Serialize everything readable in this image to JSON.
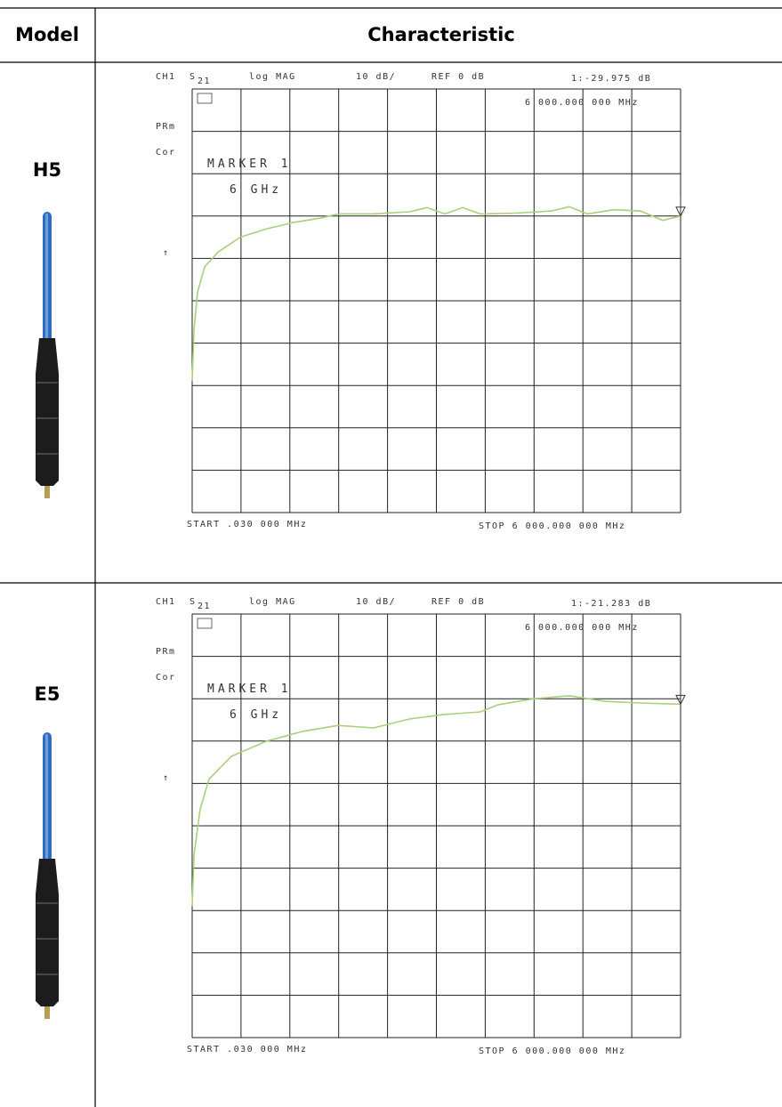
{
  "table": {
    "header": [
      "Model",
      "Characteristic"
    ],
    "rows": [
      {
        "model": "H5",
        "plot": {
          "channel": "CH1",
          "parameter": "S",
          "parameter_sub": "21",
          "format": "log MAG",
          "scale": "10 dB/",
          "reference": "REF 0 dB",
          "marker_readout": "1:-29.975 dB",
          "marker_frequency": "6 000.000 000 MHz",
          "labels": [
            "PRm",
            "Cor",
            "↑"
          ],
          "marker_label": "MARKER 1",
          "marker_value": "6 GHz",
          "start": "START .030 000 MHz",
          "stop": "STOP 6 000.000 000 MHz",
          "trace": {
            "xlim": [
              0.03,
              6000
            ],
            "ylim": [
              -100,
              0
            ],
            "x": [
              0.03,
              22,
              66,
              153,
              317,
              590,
              918,
              1246,
              1574,
              1792,
              2229,
              2667,
              2885,
              3104,
              3322,
              3541,
              3978,
              4415,
              4634,
              4852,
              5180,
              5508,
              5781,
              6000
            ],
            "values": [
              -69,
              -57,
              -48,
              -42,
              -38.5,
              -35,
              -33,
              -31.5,
              -30.5,
              -29.5,
              -29.5,
              -29,
              -28,
              -29.5,
              -28,
              -29.5,
              -29.3,
              -28.8,
              -27.8,
              -29.5,
              -28.5,
              -28.8,
              -31,
              -30
            ]
          }
        }
      },
      {
        "model": "E5",
        "plot": {
          "channel": "CH1",
          "parameter": "S",
          "parameter_sub": "21",
          "format": "log MAG",
          "scale": "10 dB/",
          "reference": "REF 0 dB",
          "marker_readout": "1:-21.283 dB",
          "marker_frequency": "6 000.000 000 MHz",
          "labels": [
            "PRm",
            "Cor",
            "↑"
          ],
          "marker_label": "MARKER 1",
          "marker_value": "6 GHz",
          "start": "START .030 000 MHz",
          "stop": "STOP 6 000.000 000 MHz",
          "trace": {
            "xlim": [
              0.03,
              6000
            ],
            "ylim": [
              -100,
              0
            ],
            "x": [
              0.03,
              22,
              98,
              208,
              481,
              918,
              1355,
              1792,
              2229,
              2667,
              3104,
              3541,
              3760,
              4197,
              4634,
              5071,
              5508,
              6000
            ],
            "values": [
              -69,
              -57,
              -46,
              -39,
              -33.6,
              -30,
              -27.7,
              -26.3,
              -26.9,
              -24.8,
              -23.7,
              -23.1,
              -21.4,
              -20,
              -19.3,
              -20.6,
              -21,
              -21.3
            ]
          }
        }
      }
    ]
  }
}
